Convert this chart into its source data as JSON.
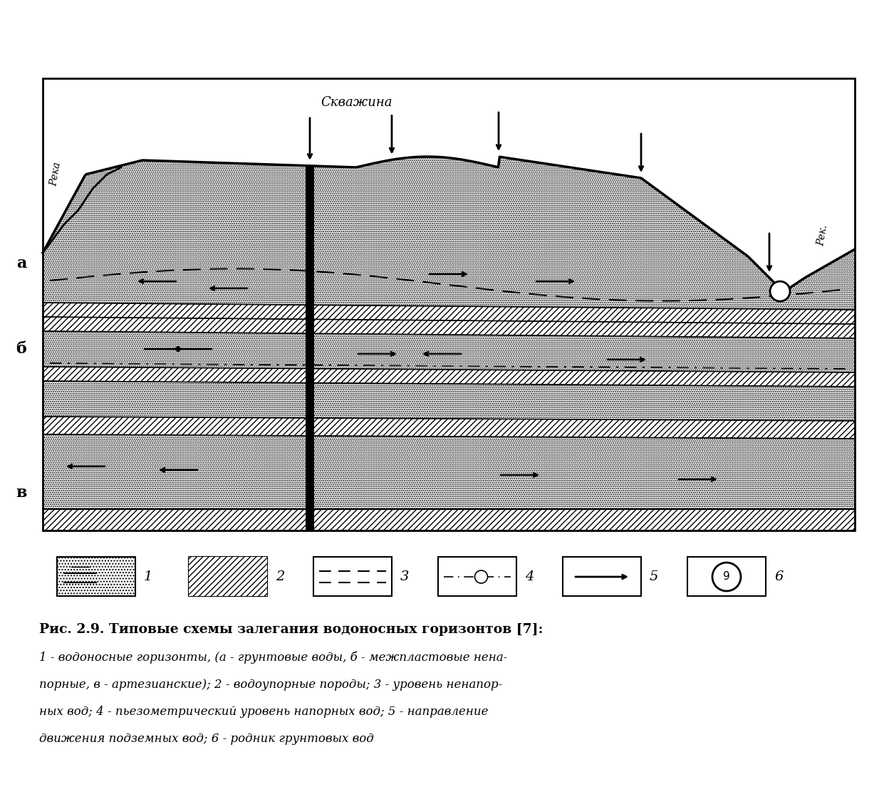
{
  "title": "Рис. 2.9. Типовые схемы залегания водоносных горизонтов [7]:",
  "caption_line1": "1 - водоносные горизонты, (а - грунтовые воды, б - межпластовые нена-",
  "caption_line2": "порные, в - артезианские); 2 - водоупорные породы; 3 - уровень ненапор-",
  "caption_line3": "ных вод; 4 - пьезометрический уровень напорных вод; 5 - направление",
  "caption_line4": "движения подземных вод; 6 - родник грунтовых вод",
  "skvazina_label": "Скважина",
  "reka_left": "Река",
  "reka_right": "Рек.",
  "label_a": "а",
  "label_b": "б",
  "label_v": "в",
  "bg_color": "#ffffff"
}
